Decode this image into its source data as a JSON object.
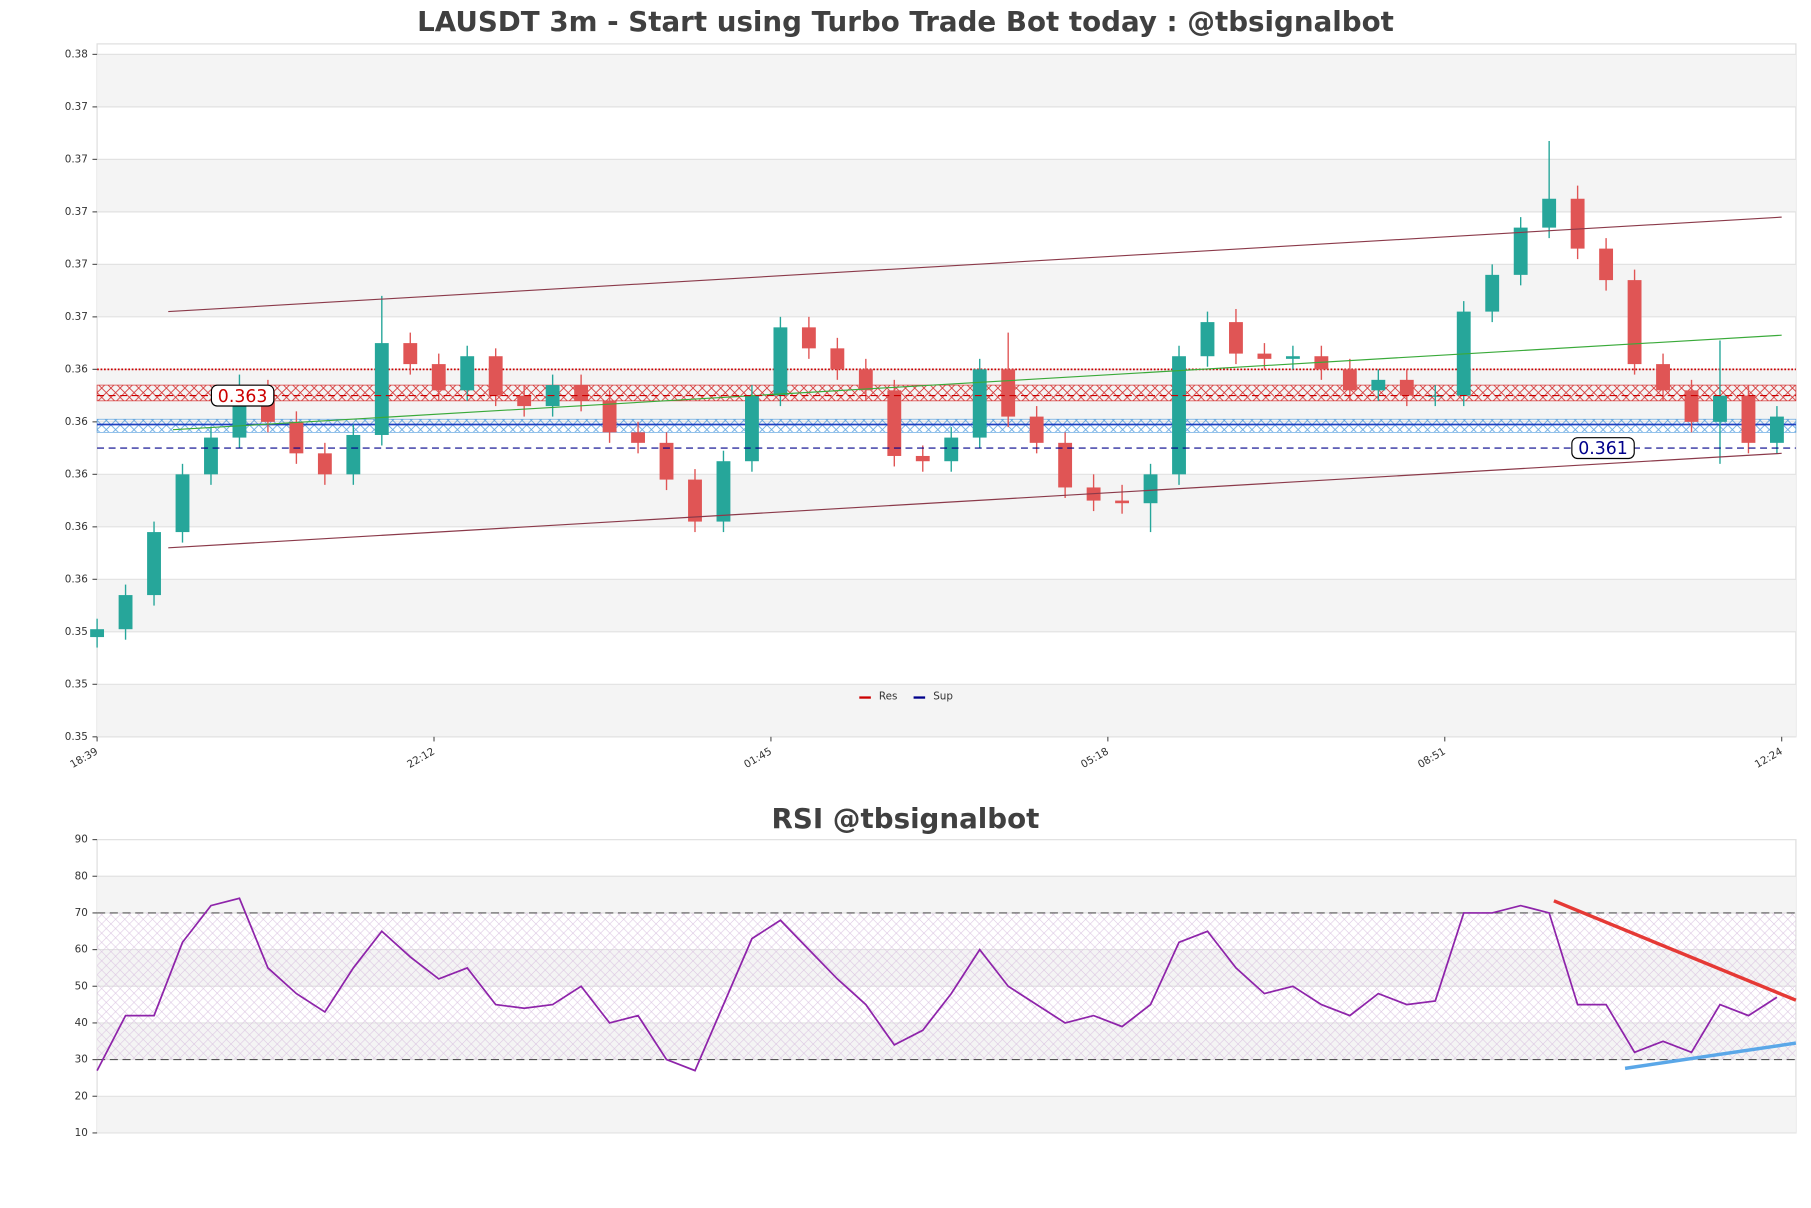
{
  "chart_data": [
    {
      "type": "candlestick",
      "title": "LAUSDT 3m - Start using Turbo Trade Bot today : @tbsignalbot",
      "x": [
        0,
        6,
        12,
        18,
        24,
        30,
        36,
        42,
        48,
        54,
        60,
        66,
        72,
        78,
        84,
        90,
        96,
        102,
        108,
        114,
        120,
        126,
        132,
        138,
        144,
        150,
        156,
        162,
        168,
        174,
        180,
        186,
        192,
        198,
        204,
        210,
        216,
        222,
        228,
        234,
        240,
        246,
        252,
        258,
        264,
        270,
        276,
        282,
        288,
        294,
        300,
        306,
        312,
        318,
        324,
        330,
        336,
        342,
        348,
        354
      ],
      "open": [
        0.3538,
        0.3541,
        0.3554,
        0.3578,
        0.36,
        0.3614,
        0.3632,
        0.362,
        0.3608,
        0.36,
        0.3615,
        0.365,
        0.3642,
        0.3632,
        0.3645,
        0.363,
        0.3626,
        0.3634,
        0.3628,
        0.3616,
        0.3612,
        0.3598,
        0.3582,
        0.3605,
        0.363,
        0.3656,
        0.3648,
        0.364,
        0.3632,
        0.3607,
        0.3605,
        0.3614,
        0.364,
        0.3622,
        0.3612,
        0.3595,
        0.359,
        0.3589,
        0.36,
        0.3645,
        0.3658,
        0.3646,
        0.3644,
        0.3645,
        0.364,
        0.3632,
        0.3636,
        0.363,
        0.363,
        0.3662,
        0.3676,
        0.3694,
        0.3705,
        0.3686,
        0.3674,
        0.3642,
        0.3632,
        0.362,
        0.363,
        0.3612
      ],
      "high": [
        0.3545,
        0.3558,
        0.3582,
        0.3604,
        0.3618,
        0.3638,
        0.3636,
        0.3624,
        0.3612,
        0.3619,
        0.3668,
        0.3654,
        0.3646,
        0.3649,
        0.3648,
        0.3634,
        0.3638,
        0.3638,
        0.3632,
        0.362,
        0.3616,
        0.3602,
        0.3609,
        0.3634,
        0.366,
        0.366,
        0.3652,
        0.3644,
        0.3636,
        0.3611,
        0.3618,
        0.3644,
        0.3654,
        0.3626,
        0.3616,
        0.36,
        0.3596,
        0.3604,
        0.3649,
        0.3662,
        0.3663,
        0.365,
        0.3649,
        0.3649,
        0.3644,
        0.364,
        0.364,
        0.3634,
        0.3666,
        0.368,
        0.3698,
        0.3727,
        0.371,
        0.369,
        0.3678,
        0.3646,
        0.3636,
        0.3651,
        0.3634,
        0.3626
      ],
      "low": [
        0.3534,
        0.3537,
        0.355,
        0.3574,
        0.3596,
        0.361,
        0.3616,
        0.3604,
        0.3596,
        0.3596,
        0.3611,
        0.3638,
        0.3628,
        0.3628,
        0.3626,
        0.3622,
        0.3622,
        0.3624,
        0.3612,
        0.3608,
        0.3594,
        0.3578,
        0.3578,
        0.3601,
        0.3626,
        0.3644,
        0.3636,
        0.3628,
        0.3603,
        0.3601,
        0.3601,
        0.361,
        0.3618,
        0.3608,
        0.3591,
        0.3586,
        0.3585,
        0.3578,
        0.3596,
        0.3641,
        0.3642,
        0.364,
        0.364,
        0.3636,
        0.3628,
        0.3628,
        0.3626,
        0.3626,
        0.3626,
        0.3658,
        0.3672,
        0.369,
        0.3682,
        0.367,
        0.3638,
        0.3628,
        0.3616,
        0.3604,
        0.3608,
        0.3608
      ],
      "close": [
        0.3541,
        0.3554,
        0.3578,
        0.36,
        0.3614,
        0.3632,
        0.362,
        0.3608,
        0.36,
        0.3615,
        0.365,
        0.3642,
        0.3632,
        0.3645,
        0.363,
        0.3626,
        0.3634,
        0.3628,
        0.3616,
        0.3612,
        0.3598,
        0.3582,
        0.3605,
        0.363,
        0.3656,
        0.3648,
        0.364,
        0.3632,
        0.3607,
        0.3605,
        0.3614,
        0.364,
        0.3622,
        0.3612,
        0.3595,
        0.359,
        0.3589,
        0.36,
        0.3645,
        0.3658,
        0.3646,
        0.3644,
        0.3645,
        0.364,
        0.3632,
        0.3636,
        0.363,
        0.363,
        0.3662,
        0.3676,
        0.3694,
        0.3705,
        0.3686,
        0.3674,
        0.3642,
        0.3632,
        0.362,
        0.363,
        0.3612,
        0.3622
      ],
      "up_color": "#26a69a",
      "down_color": "#e05555",
      "xlim": [
        0,
        358
      ],
      "xticks": [
        {
          "value": 0,
          "label": "18:39"
        },
        {
          "value": 71,
          "label": "22:12"
        },
        {
          "value": 142,
          "label": "01:45"
        },
        {
          "value": 213,
          "label": "05:18"
        },
        {
          "value": 284,
          "label": "08:51"
        },
        {
          "value": 355,
          "label": "12:24"
        }
      ],
      "ylim": [
        0.35,
        0.3764
      ],
      "yticks": [
        {
          "value": 0.35,
          "label": "0.35"
        },
        {
          "value": 0.352,
          "label": "0.35"
        },
        {
          "value": 0.354,
          "label": "0.35"
        },
        {
          "value": 0.356,
          "label": "0.36"
        },
        {
          "value": 0.358,
          "label": "0.36"
        },
        {
          "value": 0.36,
          "label": "0.36"
        },
        {
          "value": 0.362,
          "label": "0.36"
        },
        {
          "value": 0.364,
          "label": "0.36"
        },
        {
          "value": 0.366,
          "label": "0.37"
        },
        {
          "value": 0.368,
          "label": "0.37"
        },
        {
          "value": 0.37,
          "label": "0.37"
        },
        {
          "value": 0.372,
          "label": "0.37"
        },
        {
          "value": 0.374,
          "label": "0.37"
        },
        {
          "value": 0.376,
          "label": "0.38"
        }
      ],
      "grid": true,
      "levels": [
        {
          "name": "Res",
          "color": "#cc0000",
          "value": 0.363
        },
        {
          "name": "Sup",
          "color": "#00008b",
          "value": 0.361
        }
      ],
      "zones": [
        {
          "color": "#cc0000",
          "range": [
            0.3628,
            0.3634
          ]
        },
        {
          "color": "#3a8fd9",
          "range": [
            0.3616,
            0.3621
          ]
        }
      ],
      "hlines": [
        {
          "color": "#cc0000",
          "value": 0.364
        },
        {
          "color": "#1f3fbf",
          "value": 0.3619
        }
      ],
      "lines": [
        {
          "color": "#8b3a4a",
          "x": [
            15,
            355
          ],
          "y": [
            0.3662,
            0.3698
          ]
        },
        {
          "color": "#8b3a4a",
          "x": [
            15,
            355
          ],
          "y": [
            0.3572,
            0.3608
          ]
        },
        {
          "color": "#3aaa3a",
          "x": [
            16,
            355
          ],
          "y": [
            0.3617,
            0.3653
          ]
        }
      ]
    },
    {
      "type": "line",
      "title": "RSI @tbsignalbot",
      "x": [
        0,
        6,
        12,
        18,
        24,
        30,
        36,
        42,
        48,
        54,
        60,
        66,
        72,
        78,
        84,
        90,
        96,
        102,
        108,
        114,
        120,
        126,
        132,
        138,
        144,
        150,
        156,
        162,
        168,
        174,
        180,
        186,
        192,
        198,
        204,
        210,
        216,
        222,
        228,
        234,
        240,
        246,
        252,
        258,
        264,
        270,
        276,
        282,
        288,
        294,
        300,
        306,
        312,
        318,
        324,
        330,
        336,
        342,
        348,
        354
      ],
      "series": [
        {
          "color": "#8e24aa",
          "values": [
            27,
            42,
            42,
            62,
            72,
            74,
            55,
            48,
            43,
            55,
            65,
            58,
            52,
            55,
            45,
            44,
            45,
            50,
            40,
            42,
            30,
            27,
            45,
            63,
            68,
            60,
            52,
            45,
            34,
            38,
            48,
            60,
            50,
            45,
            40,
            42,
            39,
            45,
            62,
            65,
            55,
            48,
            50,
            45,
            42,
            48,
            45,
            46,
            70,
            70,
            72,
            70,
            45,
            45,
            32,
            35,
            32,
            45,
            42,
            47
          ]
        }
      ],
      "xlim": [
        0,
        358
      ],
      "ylim": [
        10,
        90
      ],
      "yticks": [
        10,
        20,
        30,
        40,
        50,
        60,
        70,
        80,
        90
      ],
      "hlines": [
        30,
        70
      ],
      "lines": [
        {
          "color": "#e53935",
          "x": [
            307,
            358
          ],
          "y": [
            73.3,
            46.2
          ]
        },
        {
          "color": "#5aa7e8",
          "x": [
            322,
            358
          ],
          "y": [
            27.6,
            34.5
          ]
        }
      ]
    }
  ]
}
